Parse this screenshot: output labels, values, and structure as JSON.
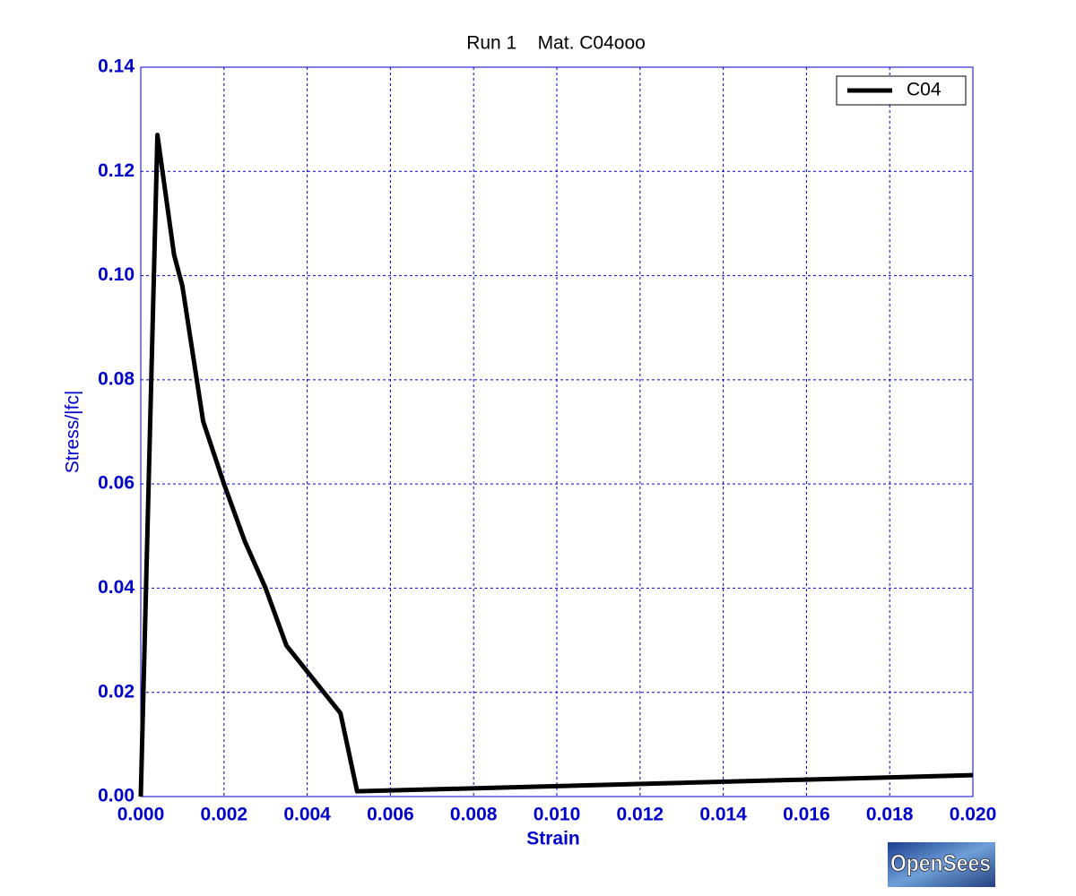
{
  "chart_data": {
    "type": "line",
    "title": "Run 1    Mat. C04ooo",
    "x_label": "Strain",
    "y_label": "Stress/|fc|",
    "x": [
      0,
      0.0004,
      0.0008,
      0.001,
      0.0015,
      0.002,
      0.0025,
      0.003,
      0.0035,
      0.004,
      0.0045,
      0.0048,
      0.0052,
      0.01,
      0.02
    ],
    "series": [
      {
        "name": "C04",
        "color": "#000000",
        "values": [
          0,
          0.127,
          0.104,
          0.098,
          0.072,
          0.06,
          0.049,
          0.04,
          0.029,
          0.024,
          0.019,
          0.016,
          0.001,
          0.002,
          0.0041
        ]
      }
    ],
    "xlim": [
      0,
      0.02
    ],
    "ylim": [
      0,
      0.14
    ],
    "xticks": [
      {
        "value": 0,
        "label": "0.000"
      },
      {
        "value": 0.002,
        "label": "0.002"
      },
      {
        "value": 0.004,
        "label": "0.004"
      },
      {
        "value": 0.006,
        "label": "0.006"
      },
      {
        "value": 0.008,
        "label": "0.008"
      },
      {
        "value": 0.01,
        "label": "0.010"
      },
      {
        "value": 0.012,
        "label": "0.012"
      },
      {
        "value": 0.014,
        "label": "0.014"
      },
      {
        "value": 0.016,
        "label": "0.016"
      },
      {
        "value": 0.018,
        "label": "0.018"
      },
      {
        "value": 0.02,
        "label": "0.020"
      }
    ],
    "yticks": [
      {
        "value": 0,
        "label": "0.00"
      },
      {
        "value": 0.02,
        "label": "0.02"
      },
      {
        "value": 0.04,
        "label": "0.04"
      },
      {
        "value": 0.06,
        "label": "0.06"
      },
      {
        "value": 0.08,
        "label": "0.08"
      },
      {
        "value": 0.1,
        "label": "0.10"
      },
      {
        "value": 0.12,
        "label": "0.12"
      },
      {
        "value": 0.14,
        "label": "0.14"
      }
    ],
    "grid": true,
    "legend": "upper-right",
    "annotations": [
      "OpenSees"
    ]
  }
}
